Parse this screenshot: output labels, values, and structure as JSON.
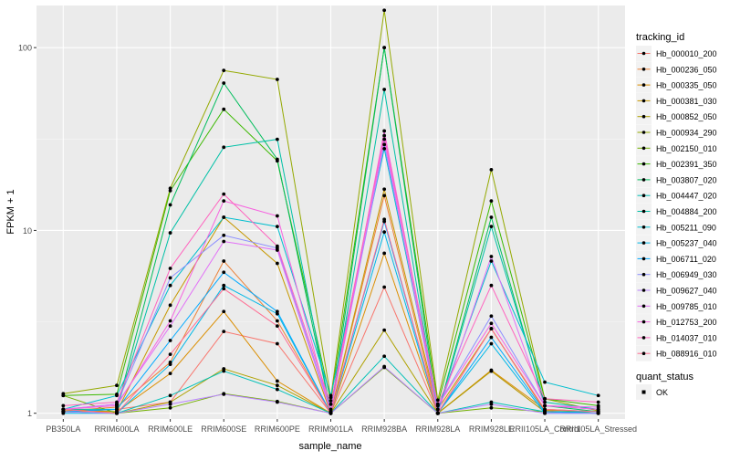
{
  "chart_data": {
    "type": "line",
    "title": "",
    "xlabel": "sample_name",
    "ylabel": "FPKM + 1",
    "yscale": "log10",
    "ylim": [
      0.93,
      170
    ],
    "yticks": [
      1,
      10,
      100
    ],
    "ytick_labels": [
      "1",
      "10",
      "100"
    ],
    "grid": true,
    "legend_position": "right",
    "legend_title": "tracking_id",
    "legend2_title": "quant_status",
    "legend2_items": [
      "OK"
    ],
    "categories": [
      "PB350LA",
      "RRIM600LA",
      "RRIM600LE",
      "RRIM600SE",
      "RRIM600PE",
      "RRIM901LA",
      "RRIM928BA",
      "RRIM928LA",
      "RRIM928LE",
      "RRII105LA_Control",
      "RRII105LA_Stressed"
    ],
    "series": [
      {
        "name": "Hb_000010_200",
        "color": "#F8766D",
        "values": [
          1.02,
          1.05,
          1.15,
          2.8,
          2.4,
          1.0,
          4.9,
          1.0,
          1.7,
          1.02,
          1.0
        ]
      },
      {
        "name": "Hb_000236_050",
        "color": "#EC8239",
        "values": [
          1.03,
          1.08,
          1.9,
          6.8,
          3.2,
          1.0,
          15.5,
          1.0,
          2.9,
          1.03,
          1.0
        ]
      },
      {
        "name": "Hb_000335_050",
        "color": "#DB8E00",
        "values": [
          1.03,
          1.02,
          1.65,
          3.6,
          1.5,
          1.0,
          7.5,
          1.0,
          1.72,
          1.05,
          1.02
        ]
      },
      {
        "name": "Hb_000381_030",
        "color": "#C79800",
        "values": [
          1.05,
          1.02,
          3.9,
          11.8,
          6.6,
          1.0,
          16.8,
          1.05,
          2.9,
          1.04,
          1.02
        ]
      },
      {
        "name": "Hb_000852_050",
        "color": "#AFA100",
        "values": [
          1.02,
          1.0,
          1.15,
          1.75,
          1.42,
          1.0,
          2.85,
          1.0,
          1.7,
          1.02,
          1.0
        ]
      },
      {
        "name": "Hb_000934_290",
        "color": "#94A900",
        "values": [
          1.28,
          1.42,
          17.0,
          75.0,
          67.0,
          1.22,
          160.0,
          1.18,
          21.5,
          1.2,
          1.03
        ]
      },
      {
        "name": "Hb_002150_010",
        "color": "#72B000",
        "values": [
          1.25,
          1.0,
          1.07,
          1.28,
          1.16,
          1.0,
          1.78,
          1.0,
          1.07,
          1.02,
          1.0
        ]
      },
      {
        "name": "Hb_002391_350",
        "color": "#3BB900",
        "values": [
          1.25,
          1.27,
          16.5,
          46.0,
          24.0,
          1.17,
          100.0,
          1.12,
          14.5,
          1.2,
          1.1
        ]
      },
      {
        "name": "Hb_003807_020",
        "color": "#00BD5C",
        "values": [
          1.02,
          1.05,
          13.8,
          64.0,
          24.5,
          1.02,
          100.0,
          1.0,
          11.8,
          1.1,
          1.02
        ]
      },
      {
        "name": "Hb_004447_020",
        "color": "#00C0B7",
        "values": [
          1.02,
          1.0,
          1.25,
          1.7,
          1.35,
          1.0,
          2.05,
          1.0,
          1.15,
          1.02,
          1.02
        ]
      },
      {
        "name": "Hb_004884_200",
        "color": "#00C1A7",
        "values": [
          1.05,
          1.05,
          9.7,
          28.5,
          31.5,
          1.02,
          59.0,
          1.0,
          10.5,
          1.15,
          1.05
        ]
      },
      {
        "name": "Hb_005211_090",
        "color": "#00BECE",
        "values": [
          1.05,
          1.25,
          5.0,
          11.8,
          10.5,
          1.25,
          28.0,
          1.05,
          6.8,
          1.48,
          1.25
        ]
      },
      {
        "name": "Hb_005237_040",
        "color": "#00B8E7",
        "values": [
          1.0,
          1.0,
          1.85,
          5.0,
          3.5,
          1.0,
          9.8,
          1.0,
          2.4,
          1.0,
          1.0
        ]
      },
      {
        "name": "Hb_006711_020",
        "color": "#00A9FF",
        "values": [
          1.02,
          1.05,
          2.5,
          5.9,
          3.6,
          1.0,
          11.2,
          1.0,
          2.6,
          1.02,
          1.0
        ]
      },
      {
        "name": "Hb_006949_030",
        "color": "#8C8EFF",
        "values": [
          1.05,
          1.12,
          5.5,
          9.4,
          8.0,
          1.05,
          29.5,
          1.1,
          3.4,
          1.1,
          1.05
        ]
      },
      {
        "name": "Hb_009627_040",
        "color": "#B983FF",
        "values": [
          1.02,
          1.0,
          1.12,
          1.27,
          1.15,
          1.0,
          1.8,
          1.0,
          1.12,
          1.0,
          1.0
        ]
      },
      {
        "name": "Hb_009785_010",
        "color": "#E26EF7",
        "values": [
          1.05,
          1.12,
          3.0,
          8.7,
          7.8,
          1.02,
          31.5,
          1.0,
          7.2,
          1.1,
          1.08
        ]
      },
      {
        "name": "Hb_012753_200",
        "color": "#F763E0",
        "values": [
          1.05,
          1.1,
          3.2,
          14.5,
          12.0,
          1.02,
          35.0,
          1.1,
          3.1,
          1.1,
          1.05
        ]
      },
      {
        "name": "Hb_014037_010",
        "color": "#FF62BE",
        "values": [
          1.1,
          1.15,
          6.2,
          15.8,
          8.2,
          1.12,
          33.0,
          1.12,
          5.0,
          1.2,
          1.15
        ]
      },
      {
        "name": "Hb_088916_010",
        "color": "#FF6C92",
        "values": [
          1.05,
          1.0,
          2.1,
          4.8,
          3.0,
          1.0,
          11.5,
          1.0,
          2.9,
          1.05,
          1.02
        ]
      }
    ]
  }
}
